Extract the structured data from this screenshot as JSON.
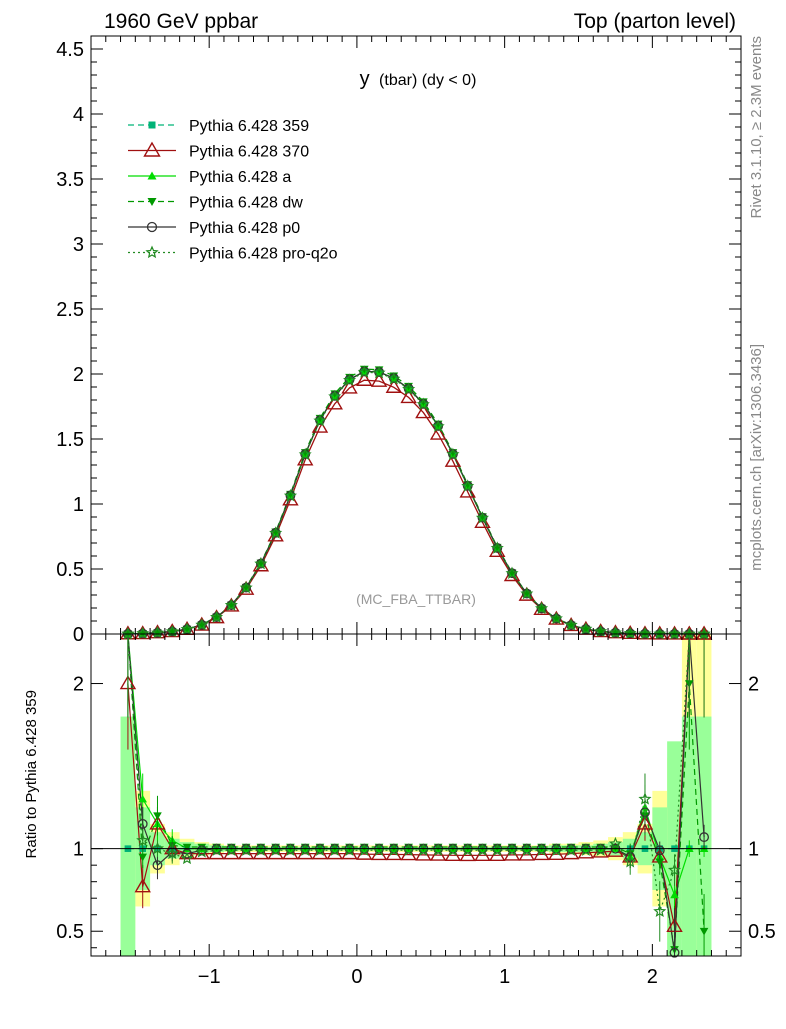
{
  "header": {
    "left_title": "1960 GeV ppbar",
    "right_title": "Top (parton level)"
  },
  "side_labels": {
    "rivet": "Rivet 3.1.10, ≥ 2.3M events",
    "mcplots": "mcplots.cern.ch [arXiv:1306.3436]"
  },
  "chart_data": [
    {
      "type": "line",
      "title": "y (tbar) (dy < 0)",
      "title_main": "y",
      "title_sub": "(tbar) (dy < 0)",
      "annotation": "(MC_FBA_TTBAR)",
      "xlim": [
        -1.8,
        2.6
      ],
      "ylim": [
        0,
        4.6
      ],
      "yticks": [
        "0",
        "0.5",
        "1",
        "1.5",
        "2",
        "2.5",
        "3",
        "3.5",
        "4",
        "4.5"
      ],
      "grid": false,
      "legend_position": "top-left",
      "x": [
        -1.55,
        -1.45,
        -1.35,
        -1.25,
        -1.15,
        -1.05,
        -0.95,
        -0.85,
        -0.75,
        -0.65,
        -0.55,
        -0.45,
        -0.35,
        -0.25,
        -0.15,
        -0.05,
        0.05,
        0.15,
        0.25,
        0.35,
        0.45,
        0.55,
        0.65,
        0.75,
        0.85,
        0.95,
        1.05,
        1.15,
        1.25,
        1.35,
        1.45,
        1.55,
        1.65,
        1.75,
        1.85,
        1.95,
        2.05,
        2.15,
        2.25,
        2.35
      ],
      "series": [
        {
          "name": "Pythia 6.428 359",
          "color": "#00b377",
          "marker": "square",
          "dash": "dashed",
          "values": [
            0.001,
            0.004,
            0.009,
            0.019,
            0.037,
            0.071,
            0.13,
            0.222,
            0.357,
            0.542,
            0.779,
            1.066,
            1.384,
            1.645,
            1.832,
            1.958,
            2.02,
            2.015,
            1.968,
            1.889,
            1.771,
            1.601,
            1.385,
            1.14,
            0.895,
            0.662,
            0.468,
            0.311,
            0.197,
            0.119,
            0.068,
            0.038,
            0.02,
            0.01,
            0.005,
            0.002,
            0.001,
            0.0005,
            0.0002,
            0.0001
          ]
        },
        {
          "name": "Pythia 6.428 370",
          "color": "#a01010",
          "marker": "triangle-open",
          "dash": "solid",
          "values": [
            0.002,
            0.003,
            0.01,
            0.019,
            0.036,
            0.069,
            0.126,
            0.216,
            0.345,
            0.525,
            0.755,
            1.032,
            1.34,
            1.592,
            1.771,
            1.893,
            1.952,
            1.945,
            1.898,
            1.82,
            1.703,
            1.538,
            1.329,
            1.093,
            0.859,
            0.636,
            0.45,
            0.299,
            0.19,
            0.115,
            0.066,
            0.037,
            0.019,
            0.01,
            0.005,
            0.002,
            0.001,
            0.0005,
            0.0002,
            0.0001
          ]
        },
        {
          "name": "Pythia 6.428 a",
          "color": "#00dd00",
          "marker": "triangle",
          "dash": "solid",
          "values": [
            0.002,
            0.005,
            0.01,
            0.019,
            0.037,
            0.071,
            0.13,
            0.222,
            0.357,
            0.542,
            0.779,
            1.066,
            1.384,
            1.645,
            1.832,
            1.958,
            2.02,
            2.015,
            1.968,
            1.889,
            1.771,
            1.601,
            1.385,
            1.14,
            0.895,
            0.662,
            0.468,
            0.311,
            0.197,
            0.119,
            0.068,
            0.038,
            0.02,
            0.01,
            0.005,
            0.002,
            0.001,
            0.0005,
            0.0002,
            0.0001
          ]
        },
        {
          "name": "Pythia 6.428 dw",
          "color": "#009900",
          "marker": "triangle-down",
          "dash": "dashed",
          "values": [
            0.002,
            0.005,
            0.01,
            0.02,
            0.038,
            0.072,
            0.131,
            0.224,
            0.36,
            0.547,
            0.786,
            1.076,
            1.397,
            1.66,
            1.849,
            1.976,
            2.038,
            2.033,
            1.986,
            1.906,
            1.787,
            1.616,
            1.397,
            1.15,
            0.903,
            0.668,
            0.472,
            0.314,
            0.199,
            0.12,
            0.069,
            0.038,
            0.02,
            0.01,
            0.005,
            0.002,
            0.001,
            0.0005,
            0.0002,
            0.0001
          ]
        },
        {
          "name": "Pythia 6.428 p0",
          "color": "#333333",
          "marker": "circle-open",
          "dash": "solid",
          "values": [
            0.001,
            0.003,
            0.009,
            0.019,
            0.037,
            0.071,
            0.13,
            0.222,
            0.357,
            0.542,
            0.779,
            1.066,
            1.384,
            1.645,
            1.832,
            1.958,
            2.02,
            2.015,
            1.968,
            1.889,
            1.771,
            1.601,
            1.385,
            1.14,
            0.895,
            0.662,
            0.468,
            0.311,
            0.197,
            0.119,
            0.068,
            0.038,
            0.02,
            0.01,
            0.005,
            0.002,
            0.001,
            0.0005,
            0.0002,
            0.0001
          ]
        },
        {
          "name": "Pythia 6.428 pro-q2o",
          "color": "#228b22",
          "marker": "star-open",
          "dash": "dotted",
          "values": [
            0.001,
            0.004,
            0.009,
            0.018,
            0.036,
            0.07,
            0.129,
            0.221,
            0.355,
            0.54,
            0.776,
            1.063,
            1.38,
            1.64,
            1.826,
            1.952,
            2.014,
            2.009,
            1.962,
            1.883,
            1.766,
            1.596,
            1.381,
            1.137,
            0.892,
            0.66,
            0.466,
            0.31,
            0.196,
            0.118,
            0.068,
            0.038,
            0.02,
            0.01,
            0.005,
            0.002,
            0.001,
            0.0005,
            0.0002,
            0.0001
          ]
        }
      ]
    },
    {
      "type": "line",
      "ylabel": "Ratio to Pythia 6.428 359",
      "xlim": [
        -1.8,
        2.6
      ],
      "ylim": [
        0.35,
        2.3
      ],
      "yticks_left": [
        "0.5",
        "1",
        "2"
      ],
      "yticks_right": [
        "0.5",
        "1",
        "2"
      ],
      "xticks": [
        "−1",
        "0",
        "1",
        "2"
      ],
      "reference_line": 1,
      "x": [
        -1.55,
        -1.45,
        -1.35,
        -1.25,
        -1.15,
        -1.05,
        -0.95,
        -0.85,
        -0.75,
        -0.65,
        -0.55,
        -0.45,
        -0.35,
        -0.25,
        -0.15,
        -0.05,
        0.05,
        0.15,
        0.25,
        0.35,
        0.45,
        0.55,
        0.65,
        0.75,
        0.85,
        0.95,
        1.05,
        1.15,
        1.25,
        1.35,
        1.45,
        1.55,
        1.65,
        1.75,
        1.85,
        1.95,
        2.05,
        2.15,
        2.25,
        2.35
      ],
      "bands": {
        "yellow": {
          "color": "#ffff99",
          "halfwidth": [
            0.55,
            0.35,
            0.15,
            0.1,
            0.06,
            0.04,
            0.03,
            0.02,
            0.02,
            0.02,
            0.02,
            0.02,
            0.02,
            0.02,
            0.02,
            0.02,
            0.02,
            0.02,
            0.02,
            0.02,
            0.02,
            0.02,
            0.02,
            0.02,
            0.02,
            0.02,
            0.02,
            0.02,
            0.02,
            0.03,
            0.03,
            0.04,
            0.05,
            0.07,
            0.1,
            0.15,
            0.35,
            0.55,
            1.3,
            1.3
          ]
        },
        "green": {
          "color": "#99ff99",
          "halfwidth": [
            0.8,
            0.25,
            0.1,
            0.06,
            0.04,
            0.03,
            0.02,
            0.015,
            0.01,
            0.01,
            0.01,
            0.01,
            0.01,
            0.01,
            0.01,
            0.01,
            0.01,
            0.01,
            0.01,
            0.01,
            0.01,
            0.01,
            0.01,
            0.01,
            0.01,
            0.01,
            0.01,
            0.01,
            0.015,
            0.02,
            0.02,
            0.02,
            0.03,
            0.04,
            0.06,
            0.1,
            0.25,
            0.65,
            0.8,
            0.8
          ]
        }
      },
      "series": [
        {
          "name": "Pythia 6.428 359",
          "values": [
            1,
            1,
            1,
            1,
            1,
            1,
            1,
            1,
            1,
            1,
            1,
            1,
            1,
            1,
            1,
            1,
            1,
            1,
            1,
            1,
            1,
            1,
            1,
            1,
            1,
            1,
            1,
            1,
            1,
            1,
            1,
            1,
            1,
            1,
            1,
            1,
            1,
            1,
            1,
            1
          ]
        },
        {
          "name": "Pythia 6.428 370",
          "values": [
            2.0,
            0.77,
            1.15,
            1.0,
            0.97,
            0.97,
            0.97,
            0.97,
            0.97,
            0.97,
            0.97,
            0.97,
            0.97,
            0.97,
            0.97,
            0.97,
            0.967,
            0.965,
            0.965,
            0.964,
            0.962,
            0.961,
            0.96,
            0.959,
            0.96,
            0.96,
            0.962,
            0.962,
            0.965,
            0.966,
            0.97,
            0.975,
            0.98,
            0.985,
            0.95,
            1.15,
            0.95,
            0.53,
            2.3,
            2.3
          ]
        },
        {
          "name": "Pythia 6.428 a",
          "values": [
            2.3,
            1.3,
            1.15,
            1.05,
            1.0,
            1.0,
            1.0,
            1.0,
            1.0,
            1.0,
            1.0,
            1.0,
            1.0,
            1.0,
            1.0,
            1.0,
            1.0,
            1.0,
            1.0,
            1.0,
            1.0,
            1.0,
            1.0,
            1.0,
            1.0,
            1.0,
            1.0,
            1.0,
            1.0,
            1.0,
            1.0,
            1.0,
            1.0,
            1.0,
            0.95,
            1.25,
            0.95,
            0.72,
            1.0,
            1.0
          ]
        },
        {
          "name": "Pythia 6.428 dw",
          "values": [
            2.3,
            0.95,
            1.2,
            1.02,
            1.01,
            1.01,
            1.01,
            1.01,
            1.01,
            1.01,
            1.01,
            1.01,
            1.01,
            1.01,
            1.01,
            1.01,
            1.01,
            1.01,
            1.01,
            1.01,
            1.01,
            1.01,
            1.01,
            1.01,
            1.01,
            1.01,
            1.01,
            1.01,
            1.01,
            1.01,
            1.01,
            1.01,
            1.01,
            1.01,
            0.97,
            1.2,
            0.92,
            0.39,
            2.0,
            0.5
          ]
        },
        {
          "name": "Pythia 6.428 p0",
          "values": [
            2.3,
            1.15,
            0.9,
            0.98,
            0.97,
            0.99,
            1.0,
            1.0,
            1.0,
            1.0,
            1.0,
            1.0,
            1.0,
            1.0,
            1.0,
            1.0,
            1.0,
            1.0,
            1.0,
            1.0,
            1.0,
            1.0,
            1.0,
            1.0,
            1.0,
            1.0,
            1.0,
            1.0,
            1.0,
            1.0,
            1.0,
            1.0,
            1.0,
            1.0,
            0.95,
            1.22,
            0.99,
            0.37,
            2.3,
            1.07
          ]
        },
        {
          "name": "Pythia 6.428 pro-q2o",
          "values": [
            2.3,
            1.05,
            1.0,
            0.97,
            0.94,
            0.98,
            0.99,
            0.99,
            0.99,
            0.99,
            0.99,
            0.99,
            0.99,
            0.99,
            0.99,
            0.99,
            0.99,
            0.99,
            0.99,
            0.99,
            0.99,
            0.99,
            0.99,
            0.99,
            0.99,
            0.99,
            0.99,
            0.99,
            0.99,
            0.99,
            0.99,
            0.99,
            0.99,
            1.03,
            0.92,
            1.3,
            0.62,
            0.87,
            2.3,
            2.3
          ]
        }
      ]
    }
  ]
}
